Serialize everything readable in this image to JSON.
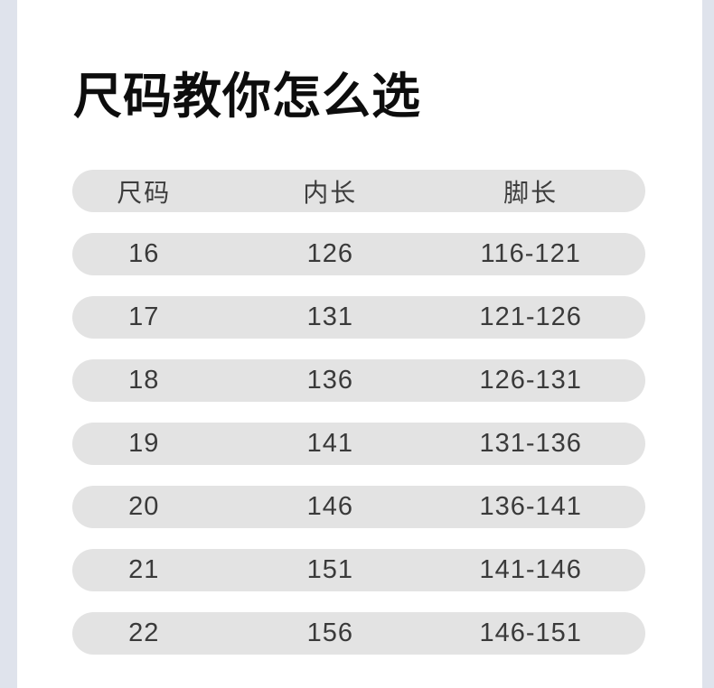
{
  "page": {
    "title": "尺码教你怎么选"
  },
  "size_table": {
    "columns": [
      "尺码",
      "内长",
      "脚长"
    ],
    "rows": [
      [
        "16",
        "126",
        "116-121"
      ],
      [
        "17",
        "131",
        "121-126"
      ],
      [
        "18",
        "136",
        "126-131"
      ],
      [
        "19",
        "141",
        "131-136"
      ],
      [
        "20",
        "146",
        "136-141"
      ],
      [
        "21",
        "151",
        "141-146"
      ],
      [
        "22",
        "156",
        "146-151"
      ]
    ]
  },
  "colors": {
    "background": "#ffffff",
    "row_background": "#e3e3e3",
    "row_text": "#3a3a3a",
    "title_text": "#0d0d0d",
    "edge_strip": "#dfe3ec"
  }
}
